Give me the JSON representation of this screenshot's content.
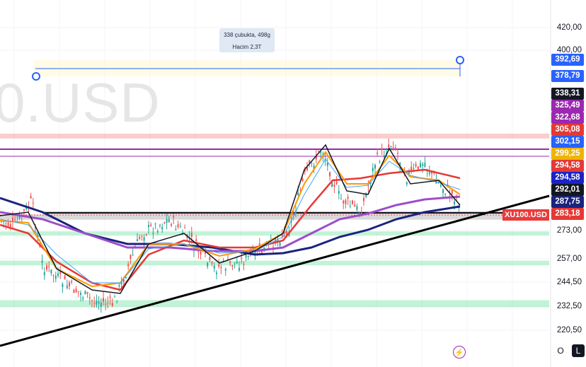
{
  "watermark": "0.USD",
  "tooltip": {
    "line1": "338 çubukta, 498g",
    "line2": "Hacim 2,3T"
  },
  "ticker_label": "XU100.USD",
  "buttons": {
    "o": "O",
    "l": "L"
  },
  "colors": {
    "candle_up": "#26a69a",
    "candle_down": "#ef5350",
    "trendline": "#000000",
    "ema_orange": "#ff9800",
    "ema_red": "#e53935",
    "ema_purple": "#9c4dcc",
    "ema_navy": "#1a237e",
    "ema_blue": "#42a5f5",
    "zone_green": "#a5eec0",
    "zone_red": "#f7c6c6",
    "hline_purple": "#9c27b0"
  },
  "chart_data": {
    "type": "candlestick",
    "symbol": "XU100.USD",
    "y_axis_ticks": [
      "420,00",
      "400,00",
      "273,00",
      "257,00",
      "244,50",
      "232,50",
      "220,50"
    ],
    "price_labels": [
      {
        "value": "392,69",
        "color": "#2962ff"
      },
      {
        "value": "378,79",
        "color": "#2962ff"
      },
      {
        "value": "338,31",
        "color": "#131722"
      },
      {
        "value": "325,49",
        "color": "#9c27b0"
      },
      {
        "value": "322,68",
        "color": "#9c27b0"
      },
      {
        "value": "305,08",
        "color": "#e53935"
      },
      {
        "value": "302,15",
        "color": "#2962ff"
      },
      {
        "value": "299,25",
        "color": "#f0b400"
      },
      {
        "value": "294,58",
        "color": "#e53935"
      },
      {
        "value": "294,58",
        "color": "#1a23c8"
      },
      {
        "value": "292,01",
        "color": "#131722"
      },
      {
        "value": "287,75",
        "color": "#1a237e"
      },
      {
        "value": "283,18",
        "color": "#e53935"
      }
    ],
    "last_price": 283.18,
    "horizontal_levels": [
      305.08,
      302.15,
      299.25,
      283.5,
      271.5,
      254.5,
      234.0
    ],
    "zones": [
      {
        "name": "resistance",
        "range": [
          303.5,
          306.5
        ]
      },
      {
        "name": "support-1",
        "range": [
          270.5,
          272.5
        ]
      },
      {
        "name": "support-2",
        "range": [
          253.5,
          256.0
        ]
      },
      {
        "name": "support-3",
        "range": [
          232.0,
          235.5
        ]
      },
      {
        "name": "gray",
        "range": [
          279.5,
          282.5
        ]
      }
    ],
    "measure_range": {
      "from": 378.79,
      "to": 392.69
    },
    "series": [
      {
        "name": "EMA-fast",
        "color": "#ff9800"
      },
      {
        "name": "EMA-mid",
        "color": "#e53935"
      },
      {
        "name": "EMA-slow",
        "color": "#9c4dcc"
      },
      {
        "name": "EMA-long",
        "color": "#1a237e"
      },
      {
        "name": "EMA-blue",
        "color": "#42a5f5"
      }
    ]
  }
}
